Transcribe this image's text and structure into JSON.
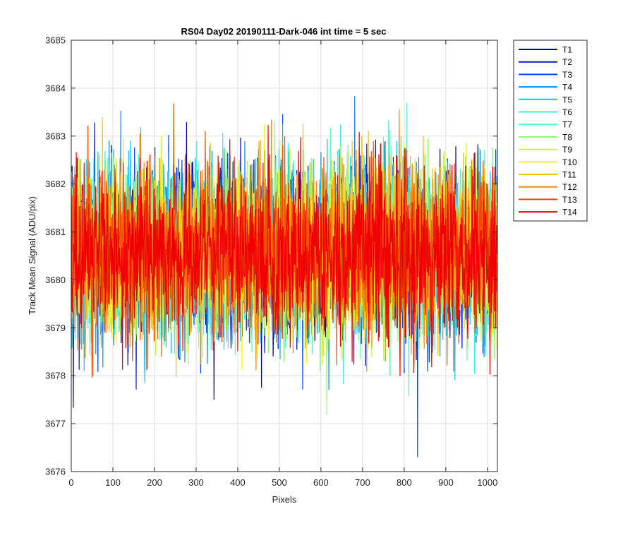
{
  "chart_data": {
    "type": "line",
    "title": "RS04 Day02 20190111-Dark-046 int time = 5 sec",
    "xlabel": "Pixels",
    "ylabel": "Track Mean Signal (ADU/pix)",
    "xlim": [
      0,
      1024
    ],
    "ylim": [
      3676,
      3685
    ],
    "xticks": [
      "0",
      "100",
      "200",
      "300",
      "400",
      "500",
      "600",
      "700",
      "800",
      "900",
      "1000"
    ],
    "xtick_values": [
      0,
      100,
      200,
      300,
      400,
      500,
      600,
      700,
      800,
      900,
      1000
    ],
    "yticks": [
      "3676",
      "3677",
      "3678",
      "3679",
      "3680",
      "3681",
      "3682",
      "3683",
      "3684",
      "3685"
    ],
    "ytick_values": [
      3676,
      3677,
      3678,
      3679,
      3680,
      3681,
      3682,
      3683,
      3684,
      3685
    ],
    "grid": true,
    "legend_position": "outside-top-right",
    "noise": {
      "mean": 3680.6,
      "std": 0.85,
      "n_points": 1024
    },
    "series": [
      {
        "name": "T1",
        "color": "#0000aa"
      },
      {
        "name": "T2",
        "color": "#0019d9"
      },
      {
        "name": "T3",
        "color": "#0047f5"
      },
      {
        "name": "T4",
        "color": "#0a8ef0"
      },
      {
        "name": "T5",
        "color": "#13c2ff"
      },
      {
        "name": "T6",
        "color": "#2ff3f0"
      },
      {
        "name": "T7",
        "color": "#5df5c2"
      },
      {
        "name": "T8",
        "color": "#8ef870"
      },
      {
        "name": "T9",
        "color": "#c8f534"
      },
      {
        "name": "T10",
        "color": "#f5f51e"
      },
      {
        "name": "T11",
        "color": "#f5c010"
      },
      {
        "name": "T12",
        "color": "#f58a0a"
      },
      {
        "name": "T13",
        "color": "#f54a05"
      },
      {
        "name": "T14",
        "color": "#f00000"
      }
    ]
  }
}
